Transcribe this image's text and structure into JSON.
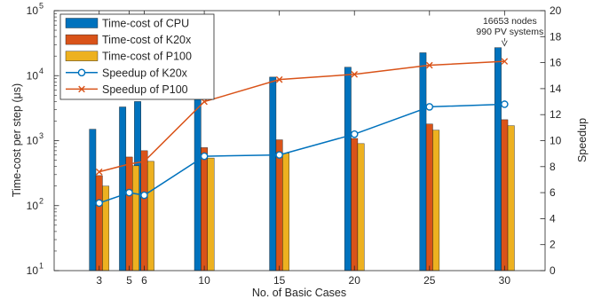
{
  "chart_data": {
    "type": "bar",
    "xlabel": "No. of Basic Cases",
    "ylabel_left": "Time-cost per step (μs)",
    "ylabel_right": "Speedup",
    "x": [
      3,
      5,
      6,
      10,
      15,
      20,
      25,
      30
    ],
    "xticks": [
      "3",
      "5",
      "6",
      "10",
      "15",
      "20",
      "25",
      "30"
    ],
    "xlim": [
      0,
      32.7
    ],
    "left_axis": {
      "scale": "log",
      "ylim": [
        10,
        100000
      ],
      "ticks": [
        {
          "value": 10,
          "base": "10",
          "exp": "1"
        },
        {
          "value": 100,
          "base": "10",
          "exp": "2"
        },
        {
          "value": 1000,
          "base": "10",
          "exp": "3"
        },
        {
          "value": 10000,
          "base": "10",
          "exp": "4"
        },
        {
          "value": 100000,
          "base": "10",
          "exp": "5"
        }
      ]
    },
    "right_axis": {
      "scale": "linear",
      "ylim": [
        0,
        20
      ],
      "ticks": [
        "0",
        "2",
        "4",
        "6",
        "8",
        "10",
        "12",
        "14",
        "16",
        "18",
        "20"
      ]
    },
    "bar_series": [
      {
        "name": "Time-cost of CPU",
        "color": "#0072BD",
        "values": [
          1500,
          3300,
          4000,
          7000,
          9500,
          13500,
          22500,
          27000
        ]
      },
      {
        "name": "Time-cost of K20x",
        "color": "#D95319",
        "values": [
          290,
          560,
          700,
          780,
          1030,
          1080,
          1800,
          2100
        ]
      },
      {
        "name": "Time-cost of P100",
        "color": "#EDB120",
        "values": [
          200,
          410,
          480,
          540,
          640,
          900,
          1450,
          1700
        ]
      }
    ],
    "line_series": [
      {
        "name": "Speedup of K20x",
        "color": "#0072BD",
        "marker": "circle",
        "values": [
          5.2,
          6.0,
          5.8,
          8.8,
          8.9,
          10.5,
          12.6,
          12.8
        ]
      },
      {
        "name": "Speedup of P100",
        "color": "#D95319",
        "marker": "x",
        "values": [
          7.6,
          8.2,
          8.4,
          13.0,
          14.7,
          15.1,
          15.8,
          16.1
        ]
      }
    ],
    "annotation": {
      "lines": [
        "16653 nodes",
        "990 PV systems"
      ],
      "x": 30,
      "target_value": 27000
    },
    "legend_position": "top-left",
    "grid": false
  }
}
